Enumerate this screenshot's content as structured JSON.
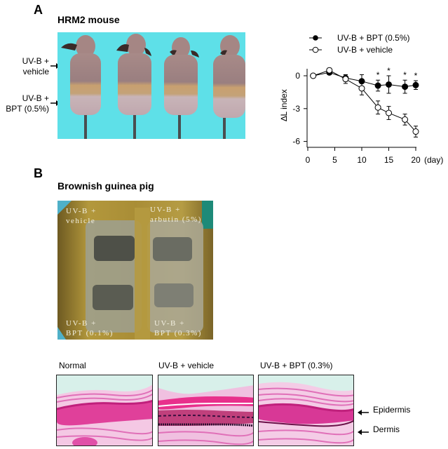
{
  "panel_a": {
    "letter": "A",
    "title": "HRM2 mouse",
    "label_top_line1": "UV-B +",
    "label_top_line2": "vehicle",
    "label_bottom_line1": "UV-B +",
    "label_bottom_line2": "BPT (0.5%)"
  },
  "panel_b": {
    "letter": "B",
    "title": "Brownish guinea pig",
    "photo_labels": {
      "top_left_1": "UV-B +",
      "top_left_2": "vehicle",
      "top_right_1": "UV-B +",
      "top_right_2": "arbutin (5%)",
      "bottom_left_1": "UV-B +",
      "bottom_left_2": "BPT (0.1%)",
      "bottom_right_1": "UV-B +",
      "bottom_right_2": "BPT (0.3%)"
    },
    "histology": {
      "titles": [
        "Normal",
        "UV-B + vehicle",
        "UV-B + BPT (0.3%)"
      ],
      "arrow_epidermis": "Epidermis",
      "arrow_dermis": "Dermis"
    }
  },
  "colors": {
    "mouse_bg": "#5ee0e8",
    "fur": "#b89a3c",
    "histo_pink": "#e0409a",
    "histo_bg": "#d8f0ea"
  },
  "chart_data": {
    "type": "line",
    "title": "",
    "xlabel": "(day)",
    "ylabel": "∆L index",
    "xlim": [
      0,
      20
    ],
    "ylim": [
      -6.5,
      0.7
    ],
    "xticks": [
      0,
      5,
      10,
      15,
      20
    ],
    "yticks": [
      0,
      -3,
      -6
    ],
    "legend_position": "top",
    "grid": false,
    "x": [
      1,
      4,
      7,
      10,
      13,
      15,
      18,
      20
    ],
    "series": [
      {
        "name": "UV-B + BPT (0.5%)",
        "marker": "filled-circle",
        "values": [
          0,
          0.3,
          -0.2,
          -0.5,
          -0.9,
          -0.8,
          -1.0,
          -0.85
        ],
        "errors": [
          0,
          0.2,
          0.3,
          0.6,
          0.5,
          0.8,
          0.6,
          0.4
        ],
        "significance": [
          false,
          false,
          false,
          false,
          true,
          true,
          true,
          true
        ]
      },
      {
        "name": "UV-B + vehicle",
        "marker": "open-circle",
        "values": [
          0,
          0.5,
          -0.3,
          -1.15,
          -2.9,
          -3.4,
          -4.0,
          -5.1
        ],
        "errors": [
          0,
          0.2,
          0.4,
          0.6,
          0.6,
          0.6,
          0.5,
          0.5
        ]
      }
    ],
    "annotation_symbol": "*"
  }
}
